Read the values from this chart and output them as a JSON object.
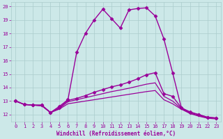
{
  "xlabel": "Windchill (Refroidissement éolien,°C)",
  "bg_color": "#cce8e8",
  "grid_color": "#aacccc",
  "line_color": "#990099",
  "xlim": [
    -0.5,
    23.5
  ],
  "ylim": [
    11.5,
    20.3
  ],
  "yticks": [
    12,
    13,
    14,
    15,
    16,
    17,
    18,
    19,
    20
  ],
  "xticks": [
    0,
    1,
    2,
    3,
    4,
    5,
    6,
    7,
    8,
    9,
    10,
    11,
    12,
    13,
    14,
    15,
    16,
    17,
    18,
    19,
    20,
    21,
    22,
    23
  ],
  "series": [
    {
      "x": [
        0,
        1,
        2,
        3,
        4,
        5,
        6,
        7,
        8,
        9,
        10,
        11,
        12,
        13,
        14,
        15,
        16,
        17,
        18,
        19,
        20,
        21,
        22,
        23
      ],
      "y": [
        13.0,
        12.75,
        12.7,
        12.7,
        12.15,
        12.6,
        13.1,
        16.6,
        18.0,
        19.0,
        19.8,
        19.1,
        18.4,
        19.75,
        19.85,
        19.9,
        19.3,
        17.6,
        15.1,
        12.5,
        12.2,
        12.0,
        11.8,
        11.75
      ],
      "marker": "D",
      "markersize": 2.5,
      "linewidth": 1.0,
      "linestyle": "-"
    },
    {
      "x": [
        0,
        1,
        2,
        3,
        4,
        5,
        6,
        7,
        8,
        9,
        10,
        11,
        12,
        13,
        14,
        15,
        16,
        17,
        18,
        19,
        20,
        21,
        22,
        23
      ],
      "y": [
        13.0,
        12.75,
        12.7,
        12.7,
        12.15,
        12.5,
        13.05,
        13.2,
        13.4,
        13.65,
        13.85,
        14.05,
        14.2,
        14.4,
        14.65,
        14.95,
        15.1,
        13.55,
        13.35,
        12.5,
        12.15,
        12.0,
        11.8,
        11.75
      ],
      "marker": "D",
      "markersize": 2.5,
      "linewidth": 1.0,
      "linestyle": "-"
    },
    {
      "x": [
        0,
        1,
        2,
        3,
        4,
        5,
        6,
        7,
        8,
        9,
        10,
        11,
        12,
        13,
        14,
        15,
        16,
        17,
        18,
        19,
        20,
        21,
        22,
        23
      ],
      "y": [
        13.0,
        12.75,
        12.7,
        12.65,
        12.15,
        12.45,
        12.95,
        13.1,
        13.25,
        13.4,
        13.55,
        13.7,
        13.82,
        13.95,
        14.1,
        14.25,
        14.35,
        13.35,
        13.0,
        12.45,
        12.1,
        11.92,
        11.78,
        11.73
      ],
      "marker": null,
      "markersize": 0,
      "linewidth": 0.9,
      "linestyle": "-"
    },
    {
      "x": [
        0,
        1,
        2,
        3,
        4,
        5,
        6,
        7,
        8,
        9,
        10,
        11,
        12,
        13,
        14,
        15,
        16,
        17,
        18,
        19,
        20,
        21,
        22,
        23
      ],
      "y": [
        13.0,
        12.75,
        12.7,
        12.65,
        12.15,
        12.4,
        12.8,
        12.9,
        13.0,
        13.1,
        13.2,
        13.3,
        13.4,
        13.5,
        13.6,
        13.7,
        13.78,
        13.1,
        12.8,
        12.4,
        12.08,
        11.88,
        11.73,
        11.68
      ],
      "marker": null,
      "markersize": 0,
      "linewidth": 0.9,
      "linestyle": "-"
    }
  ]
}
